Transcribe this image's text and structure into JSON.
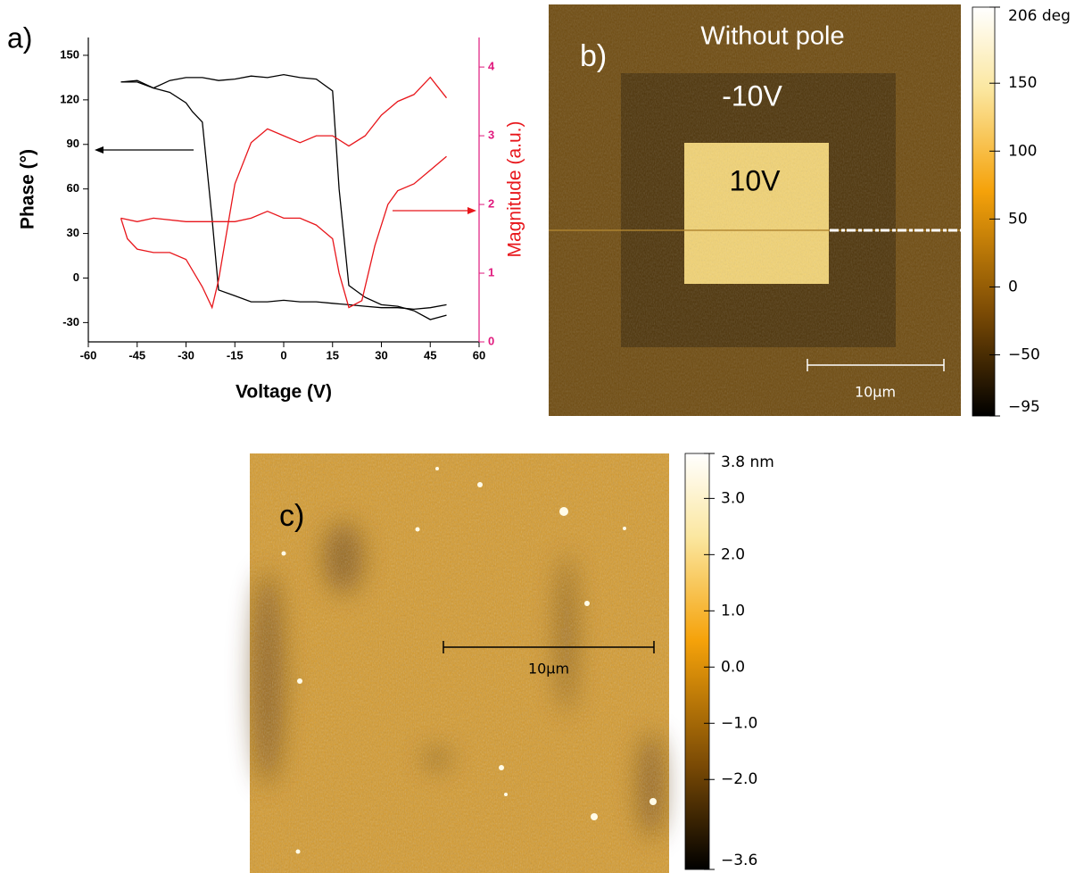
{
  "chart_data": {
    "type": "line",
    "panel_label": "a)",
    "x_label": "Voltage (V)",
    "y_label": "Phase (°)",
    "y2_label": "Magnitude (a.u.)",
    "xlim": [
      -60,
      60
    ],
    "xticks": [
      -60,
      -45,
      -30,
      -15,
      0,
      15,
      30,
      45,
      60
    ],
    "ylim": [
      -43,
      162
    ],
    "yticks": [
      -30,
      0,
      30,
      60,
      90,
      120,
      150
    ],
    "y2lim": [
      0,
      4.43
    ],
    "y2ticks": [
      0,
      1,
      2,
      3,
      4
    ],
    "y2_color": "#e0197d",
    "series": [
      {
        "color": "#000000",
        "x": [
          -50,
          -45,
          -40,
          -35,
          -30,
          -25,
          -20,
          -15,
          -10,
          -5,
          0,
          5,
          10,
          15,
          17,
          20,
          25,
          30,
          35,
          40,
          45,
          50
        ],
        "values": [
          132,
          133,
          128,
          133,
          135,
          135,
          133,
          134,
          136,
          135,
          137,
          135,
          134,
          126,
          60,
          -5,
          -13,
          -18,
          -19,
          -22,
          -28,
          -25
        ]
      },
      {
        "color": "#000000",
        "x": [
          50,
          45,
          40,
          35,
          30,
          25,
          20,
          15,
          10,
          5,
          0,
          -5,
          -10,
          -15,
          -20,
          -22,
          -25,
          -28,
          -30,
          -35,
          -40,
          -45,
          -50
        ],
        "values": [
          -18,
          -20,
          -21,
          -20,
          -20,
          -19,
          -18,
          -17,
          -16,
          -16,
          -15,
          -16,
          -16,
          -12,
          -8,
          40,
          105,
          112,
          118,
          125,
          128,
          132,
          132
        ]
      },
      {
        "color": "#e8161b",
        "axis": "y2",
        "x": [
          -50,
          -48,
          -45,
          -40,
          -35,
          -30,
          -25,
          -22,
          -20,
          -15,
          -10,
          -5,
          0,
          5,
          10,
          15,
          20,
          25,
          30,
          35,
          40,
          45,
          50
        ],
        "values": [
          1.8,
          1.5,
          1.35,
          1.3,
          1.3,
          1.2,
          0.8,
          0.5,
          0.9,
          2.3,
          2.9,
          3.1,
          3.0,
          2.9,
          3.0,
          3.0,
          2.85,
          3.0,
          3.3,
          3.5,
          3.6,
          3.85,
          3.55
        ]
      },
      {
        "color": "#e8161b",
        "axis": "y2",
        "x": [
          50,
          45,
          40,
          35,
          32,
          28,
          24,
          20,
          17,
          15,
          10,
          5,
          0,
          -5,
          -10,
          -15,
          -20,
          -25,
          -30,
          -40,
          -45,
          -50
        ],
        "values": [
          2.7,
          2.5,
          2.3,
          2.2,
          2.0,
          1.4,
          0.6,
          0.5,
          1.0,
          1.5,
          1.7,
          1.8,
          1.8,
          1.9,
          1.8,
          1.75,
          1.75,
          1.75,
          1.75,
          1.8,
          1.75,
          1.8
        ]
      }
    ]
  },
  "panels": [
    {
      "label": "b)",
      "annotations": [
        "Without pole",
        "-10V",
        "10V"
      ],
      "scale_bar": "10µm",
      "colorbar": {
        "lim": [
          -95,
          206
        ],
        "ticks": [
          {
            "value": 206,
            "label": "206 deg"
          },
          150,
          100,
          50,
          0,
          {
            "value": -50,
            "label": "−50"
          },
          {
            "value": -95,
            "label": "−95"
          }
        ]
      }
    },
    {
      "label": "c)",
      "scale_bar": "10µm",
      "colorbar": {
        "lim": [
          -3.6,
          3.8
        ],
        "ticks": [
          {
            "value": 3.8,
            "label": "3.8 nm"
          },
          {
            "value": 3,
            "label": "3.0"
          },
          {
            "value": 2,
            "label": "2.0"
          },
          {
            "value": 1,
            "label": "1.0"
          },
          {
            "value": 0,
            "label": "0.0"
          },
          {
            "value": -1,
            "label": "−1.0"
          },
          {
            "value": -2,
            "label": "−2.0"
          },
          {
            "value": -3.6,
            "label": "−3.6"
          }
        ]
      }
    }
  ]
}
